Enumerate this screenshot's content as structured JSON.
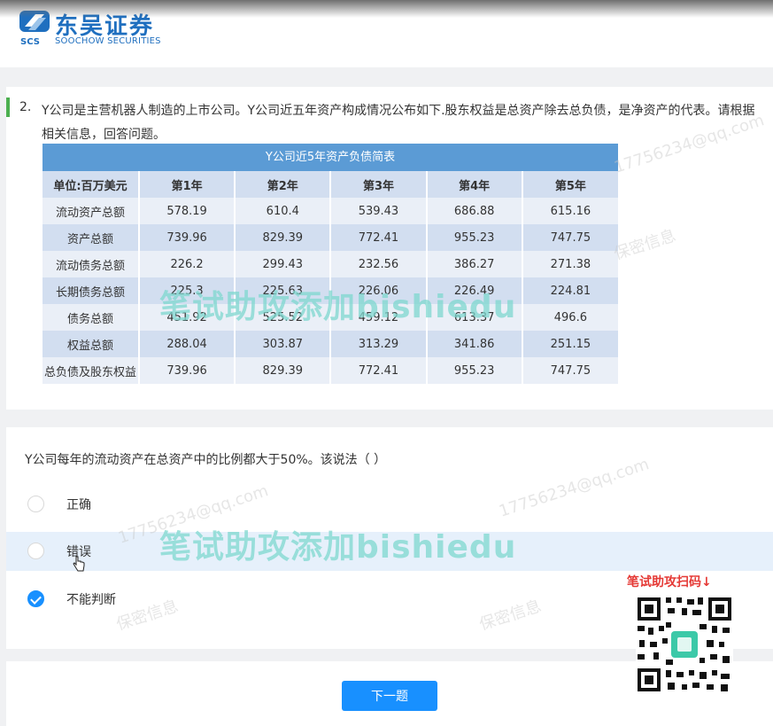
{
  "brand": {
    "name_cn": "东吴证券",
    "name_en": "SOOCHOW SECURITIES",
    "abbr": "SCS"
  },
  "question": {
    "number": "2.",
    "text": "Y公司是主营机器人制造的上市公司。Y公司近五年资产构成情况公布如下.股东权益是总资产除去总负债，是净资产的代表。请根据相关信息，回答问题。"
  },
  "table": {
    "title": "Y公司近5年资产负债简表",
    "headers": [
      "单位:百万美元",
      "第1年",
      "第2年",
      "第3年",
      "第4年",
      "第5年"
    ],
    "rows": [
      [
        "流动资产总额",
        "578.19",
        "610.4",
        "539.43",
        "686.88",
        "615.16"
      ],
      [
        "资产总额",
        "739.96",
        "829.39",
        "772.41",
        "955.23",
        "747.75"
      ],
      [
        "流动债务总额",
        "226.2",
        "299.43",
        "232.56",
        "386.27",
        "271.38"
      ],
      [
        "长期债务总额",
        "225.3",
        "225.63",
        "226.06",
        "226.49",
        "224.81"
      ],
      [
        "债务总额",
        "451.92",
        "525.52",
        "459.12",
        "613.37",
        "496.6"
      ],
      [
        "权益总额",
        "288.04",
        "303.87",
        "313.29",
        "341.86",
        "251.15"
      ],
      [
        "总负债及股东权益",
        "739.96",
        "829.39",
        "772.41",
        "955.23",
        "747.75"
      ]
    ]
  },
  "sub_question": {
    "text": "Y公司每年的流动资产在总资产中的比例都大于50%。该说法（ ）",
    "options": [
      {
        "label": "正确",
        "checked": false,
        "hovered": false
      },
      {
        "label": "错误",
        "checked": false,
        "hovered": true
      },
      {
        "label": "不能判断",
        "checked": true,
        "hovered": false
      }
    ]
  },
  "next_button": "下一题",
  "watermarks": {
    "overlay": "笔试助攻添加bishiedu",
    "qr_caption": "笔试助攻扫码↓",
    "faint": [
      "保密信息",
      "17756234@qq.com"
    ]
  },
  "colors": {
    "brand_blue": "#1f6fbf",
    "accent_green": "#4caf50",
    "table_header": "#5b9bd5",
    "primary_button": "#1890ff",
    "overlay_watermark": "#7fd8cf",
    "qr_caption": "#e53935"
  }
}
